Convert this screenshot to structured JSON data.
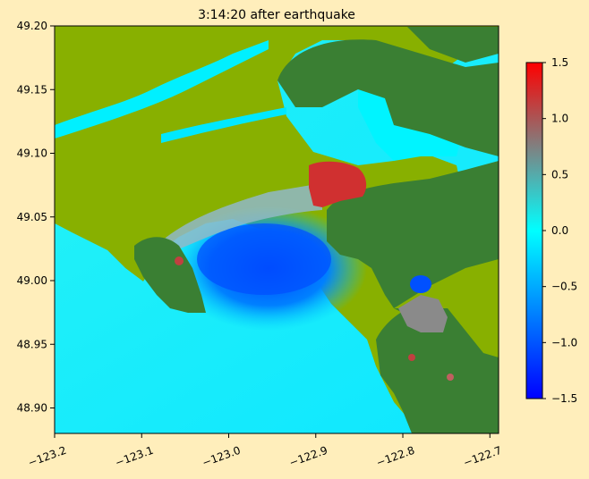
{
  "chart_data": {
    "type": "heatmap",
    "title": "3:14:20 after earthquake",
    "xlabel": "",
    "ylabel": "",
    "xlim": [
      -123.2,
      -122.69
    ],
    "ylim": [
      48.88,
      49.2
    ],
    "x_ticks": [
      -123.2,
      -123.1,
      -123.0,
      -122.9,
      -122.8,
      -122.7
    ],
    "x_tick_labels": [
      "−123.2",
      "−123.1",
      "−123.0",
      "−122.9",
      "−122.8",
      "−122.7"
    ],
    "y_ticks": [
      48.9,
      48.95,
      49.0,
      49.05,
      49.1,
      49.15,
      49.2
    ],
    "y_tick_labels": [
      "48.90",
      "48.95",
      "49.00",
      "49.05",
      "49.10",
      "49.15",
      "49.20"
    ],
    "colorbar": {
      "range": [
        -1.5,
        1.5
      ],
      "ticks": [
        -1.5,
        -1.0,
        -0.5,
        0.0,
        0.5,
        1.0,
        1.5
      ],
      "tick_labels": [
        "−1.5",
        "−1.0",
        "−0.5",
        "0.0",
        "0.5",
        "1.0",
        "1.5"
      ],
      "colors": [
        "#0000ff",
        "#00ffff",
        "#808080",
        "#ff0000"
      ]
    },
    "colors": {
      "land_dark": "#3a7f33",
      "land_light": "#88b000",
      "water_zero": "#00ffff"
    },
    "grid": false
  }
}
